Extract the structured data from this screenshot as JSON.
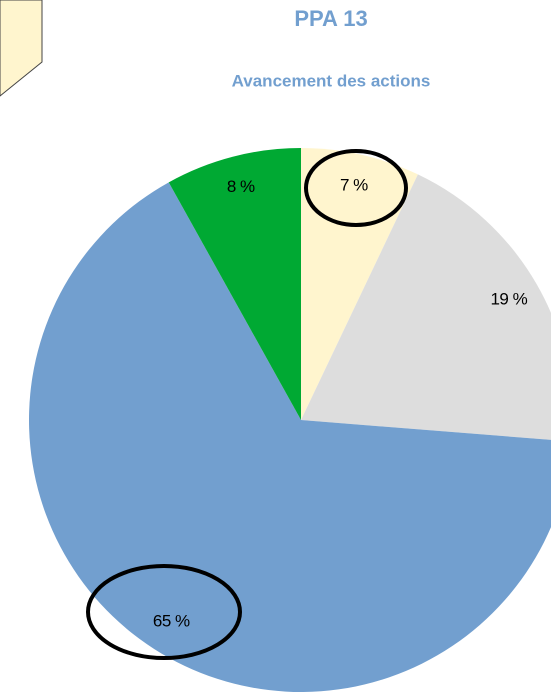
{
  "chart_data": {
    "type": "pie",
    "title": "PPA 13",
    "subtitle": "Avancement des actions",
    "categories": [
      null,
      null,
      null,
      null
    ],
    "values": [
      7,
      19,
      65,
      8
    ],
    "value_labels": [
      "7 %",
      "19 %",
      "65 %",
      "8 %"
    ],
    "colors": [
      "#fff5ce",
      "#dddddd",
      "#729fcf",
      "#00a933"
    ]
  }
}
